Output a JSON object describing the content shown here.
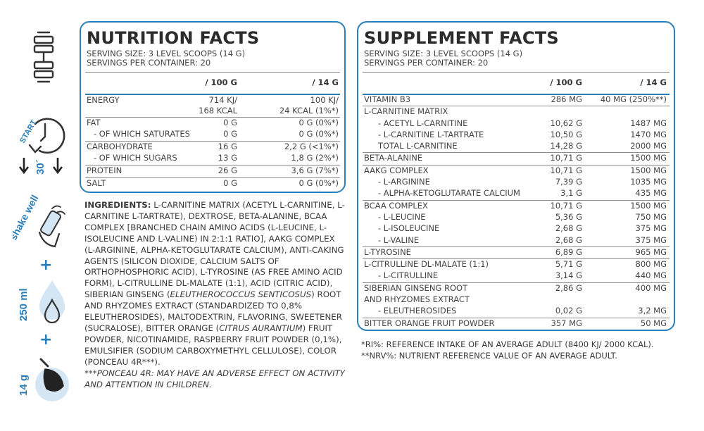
{
  "colors": {
    "accent": "#2b7fb8",
    "text": "#3c3c3c",
    "icon_fill": "#d4e6f3",
    "icon_stroke": "#333333"
  },
  "side_icons": {
    "dumbbell": "dumbbell-icon",
    "timer": {
      "label": "START",
      "time": "30´"
    },
    "shake": {
      "label": "shake well"
    },
    "plus_1": "+",
    "water": {
      "label": "250 ml"
    },
    "plus_2": "+",
    "scoop": {
      "label": "14 g"
    }
  },
  "nutrition": {
    "title": "NUTRITION FACTS",
    "serving_size": "SERVING SIZE: 3 LEVEL SCOOPS (14 G)",
    "servings_per_container": "SERVINGS PER CONTAINER: 20",
    "col_100g": "/ 100 G",
    "col_14g": "/ 14 G",
    "rows": [
      {
        "name": "ENERGY",
        "v100_1": "714 KJ/",
        "v100_2": "168 KCAL",
        "v14_1": "100 KJ/",
        "v14_2": "24 KCAL (1%*)"
      },
      {
        "name": "FAT",
        "v100": "0 G",
        "v14": "0 G (0%*)"
      },
      {
        "name": "- OF WHICH SATURATES",
        "v100": "0 G",
        "v14": "0 G (0%*)"
      },
      {
        "name": "CARBOHYDRATE",
        "v100": "16 G",
        "v14": "2,2 G (<1%*)"
      },
      {
        "name": "- OF WHICH SUGARS",
        "v100": "13 G",
        "v14": "1,8 G (2%*)"
      },
      {
        "name": "PROTEIN",
        "v100": "26 G",
        "v14": "3,6 G (7%*)"
      },
      {
        "name": "SALT",
        "v100": "0 G",
        "v14": "0 G (0%*)"
      }
    ]
  },
  "ingredients": {
    "label": "INGREDIENTS:",
    "text_1": " L-CARNITINE MATRIX (ACETYL L-CARNITINE, L-CARNITINE L-TARTRATE), DEXTROSE, BETA-ALANINE, BCAA COMPLEX [BRANCHED CHAIN AMINO ACIDS (L-LEUCINE, L-ISOLEUCINE AND L-VALINE) IN 2:1:1 RATIO], AAKG COMPLEX (L-ARGININE, ALPHA-KETOGLUTARATE CALCIUM), ANTI-CAKING AGENTS (SILICON DIOXIDE, CALCIUM SALTS OF ORTHOPHOSPHORIC ACID), L-TYROSINE (AS FREE AMINO ACID FORM), L-CITRULLINE DL-MALATE (1:1), ACID (CITRIC ACID), SIBERIAN GINSENG (",
    "italic_1": "ELEUTHEROCOCCUS SENTICOSUS",
    "text_2": ") ROOT AND RHYZOMES EXTRACT (STANDARDIZED TO 0,8% ELEUTHEROSIDES), MALTODEXTRIN, FLAVORING, SWEETENER (SUCRALOSE), BITTER ORANGE (",
    "italic_2": "CITRUS AURANTIUM",
    "text_3": ") FRUIT POWDER, NICOTINAMIDE, RASPBERRY FRUIT POWDER (0,1%), EMULSIFIER (SODIUM CARBOXYMETHYL CELLULOSE), COLOR (PONCEAU 4R***).",
    "warning": "***PONCEAU 4R: MAY HAVE AN ADVERSE EFFECT ON ACTIVITY AND ATTENTION IN CHILDREN."
  },
  "supplement": {
    "title": "SUPPLEMENT FACTS",
    "serving_size": "SERVING SIZE: 3 LEVEL SCOOPS (14 G)",
    "servings_per_container": "SERVINGS PER CONTAINER: 20",
    "col_100g": "/ 100 G",
    "col_14g": "/ 14 G",
    "groups": [
      {
        "rows": [
          {
            "name": "VITAMIN B3",
            "v100": "286 MG",
            "v14": "40 MG (250%**)"
          }
        ]
      },
      {
        "rows": [
          {
            "name": "L-CARNITINE MATRIX",
            "v100": "",
            "v14": ""
          },
          {
            "name": "- ACETYL L-CARNITINE",
            "v100": "10,62 G",
            "v14": "1487 MG"
          },
          {
            "name": "- L-CARNITINE L-TARTRATE",
            "v100": "10,50 G",
            "v14": "1470 MG"
          },
          {
            "name": "TOTAL L-CARNITINE",
            "v100": "14,28 G",
            "v14": "2000 MG"
          }
        ]
      },
      {
        "rows": [
          {
            "name": "BETA-ALANINE",
            "v100": "10,71 G",
            "v14": "1500 MG"
          }
        ]
      },
      {
        "rows": [
          {
            "name": "AAKG COMPLEX",
            "v100": "10,71 G",
            "v14": "1500 MG"
          },
          {
            "name": "- L-ARGININE",
            "v100": "7,39 G",
            "v14": "1035 MG"
          },
          {
            "name": "- ALPHA-KETOGLUTARATE CALCIUM",
            "v100": "3,1 G",
            "v14": "435 MG"
          }
        ]
      },
      {
        "rows": [
          {
            "name": "BCAA COMPLEX",
            "v100": "10,71 G",
            "v14": "1500 MG"
          },
          {
            "name": "- L-LEUCINE",
            "v100": "5,36 G",
            "v14": "750 MG"
          },
          {
            "name": "- L-ISOLEUCINE",
            "v100": "2,68 G",
            "v14": "375 MG"
          },
          {
            "name": "- L-VALINE",
            "v100": "2,68 G",
            "v14": "375 MG"
          }
        ]
      },
      {
        "rows": [
          {
            "name": "L-TYROSINE",
            "v100": "6,89 G",
            "v14": "965 MG"
          }
        ]
      },
      {
        "rows": [
          {
            "name": "L-CITRULLINE DL-MALATE (1:1)",
            "v100": "5,71 G",
            "v14": "800 MG"
          },
          {
            "name": "- L-CITRULLINE",
            "v100": "3,14 G",
            "v14": "440 MG"
          }
        ]
      },
      {
        "rows": [
          {
            "name": "SIBERIAN GINSENG ROOT",
            "v100": "2,86 G",
            "v14": "400 MG"
          },
          {
            "name": "AND RHYZOMES EXTRACT",
            "v100": "",
            "v14": ""
          },
          {
            "name": "- ELEUTHEROSIDES",
            "v100": "0,02 G",
            "v14": "3,2 MG"
          }
        ]
      },
      {
        "rows": [
          {
            "name": "BITTER ORANGE FRUIT POWDER",
            "v100": "357 MG",
            "v14": "50 MG"
          }
        ]
      }
    ]
  },
  "footnotes": {
    "ri": "*RI%: REFERENCE INTAKE OF AN AVERAGE ADULT (8400 KJ/ 2000 KCAL).",
    "nrv": "**NRV%: NUTRIENT REFERENCE VALUE OF AN AVERAGE ADULT."
  }
}
